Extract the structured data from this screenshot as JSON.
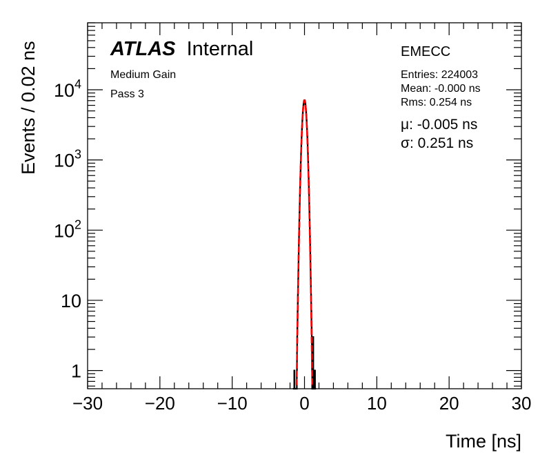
{
  "chart_data": {
    "type": "histogram",
    "xlabel": "Time [ns]",
    "ylabel": "Events / 0.02 ns",
    "xlim": [
      -30,
      30
    ],
    "ylim": [
      0.55,
      90000
    ],
    "yscale": "log",
    "x_ticks": [
      -30,
      -20,
      -10,
      0,
      10,
      20,
      30
    ],
    "x_tick_labels": [
      "−30",
      "−20",
      "−10",
      "0",
      "10",
      "20",
      "30"
    ],
    "y_ticks": [
      1,
      10,
      100,
      1000,
      10000
    ],
    "y_tick_labels": [
      {
        "base": "1",
        "exp": ""
      },
      {
        "base": "10",
        "exp": ""
      },
      {
        "base": "10",
        "exp": "2"
      },
      {
        "base": "10",
        "exp": "3"
      },
      {
        "base": "10",
        "exp": "4"
      }
    ],
    "atlas_label": {
      "bold": "ATLAS",
      "rest": "Internal"
    },
    "annotations": {
      "gain": "Medium Gain",
      "pass": "Pass 3",
      "region": "EMECC",
      "entries": "Entries: 224003",
      "mean": "Mean: -0.000 ns",
      "rms": "Rms: 0.254 ns",
      "mu": "μ: -0.005 ns",
      "sigma": "σ: 0.251 ns"
    },
    "histogram": {
      "color": "#000000",
      "bin_width": 0.02,
      "entries": 224003,
      "mean": 0.0,
      "rms": 0.254,
      "outliers": [
        {
          "x": -1.4,
          "count": 1
        },
        {
          "x": -1.0,
          "count": 2
        },
        {
          "x": 1.2,
          "count": 3
        },
        {
          "x": 1.45,
          "count": 1
        }
      ]
    },
    "fit": {
      "type": "gaussian",
      "color": "#ff0000",
      "peak": 7100,
      "mu": -0.005,
      "sigma": 0.251
    },
    "grid": false
  }
}
